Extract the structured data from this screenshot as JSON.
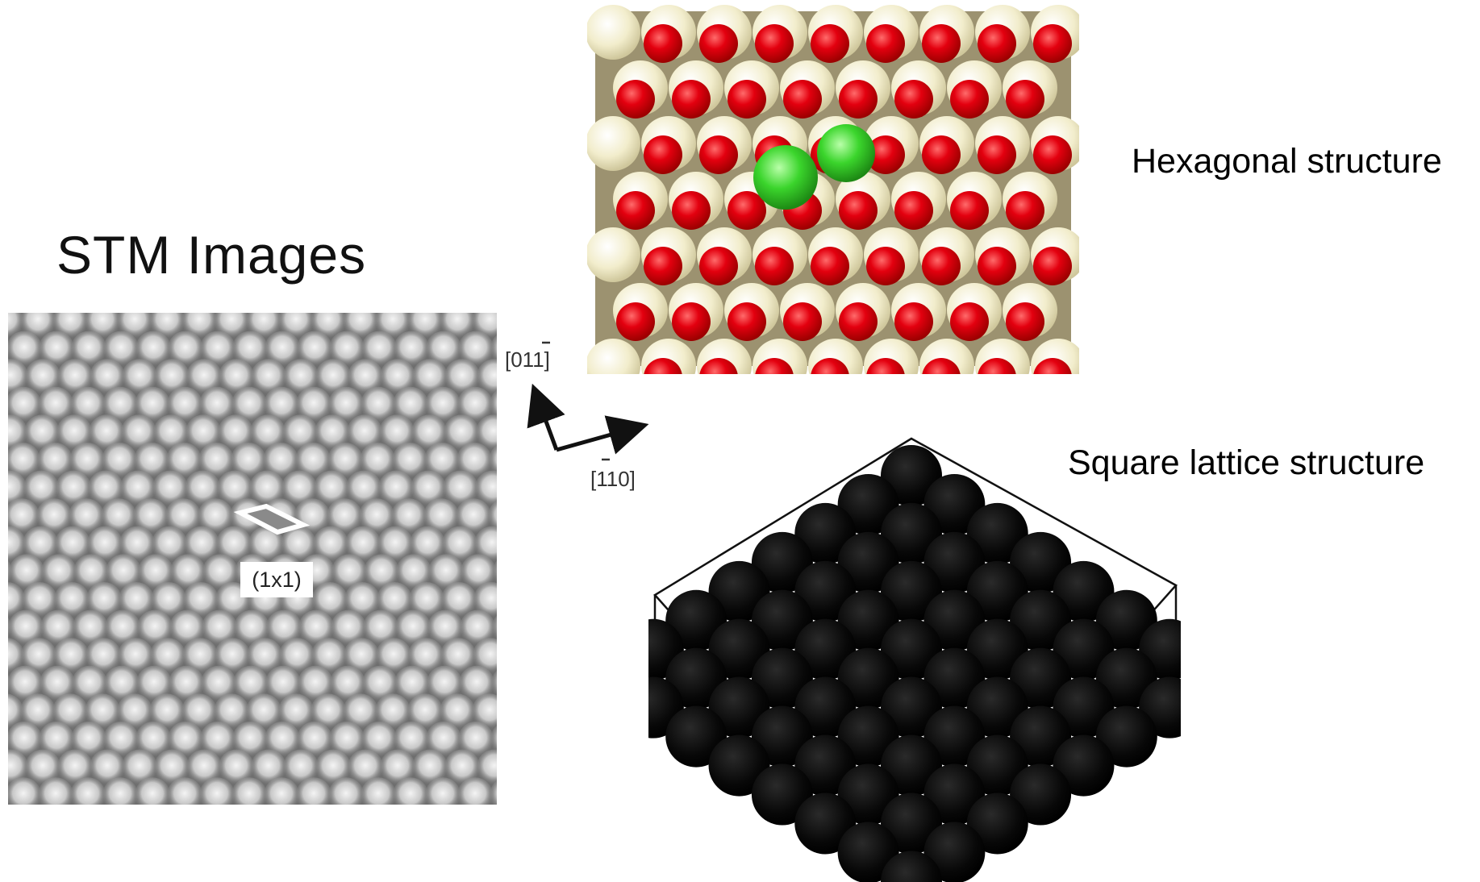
{
  "stm": {
    "title": "STM Images",
    "cell_label": "(1x1)"
  },
  "axes": {
    "up": "[01̄1]",
    "right": "[̄10]",
    "up_text": "[011]",
    "right_text": "[110]"
  },
  "hexagonal": {
    "label": "Hexagonal structure"
  },
  "square": {
    "label": "Square lattice structure"
  },
  "colors": {
    "oxygen_red": "#e0000e",
    "cream_atom": "#f7f3d8",
    "green_atom": "#35d42a",
    "black_atom": "#0a0a0a",
    "stm_bg": "#7a7a7a"
  }
}
